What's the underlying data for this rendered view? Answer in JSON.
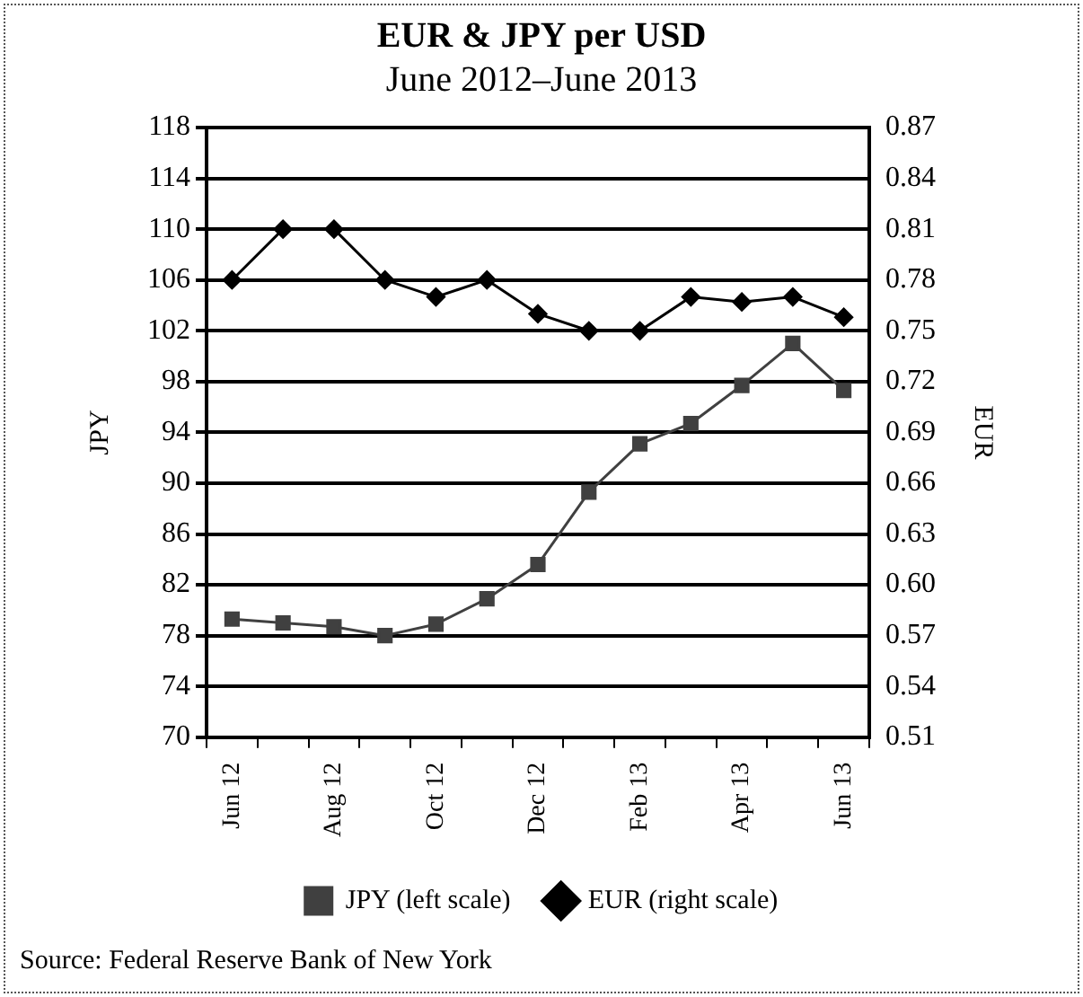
{
  "chart_data": {
    "type": "line",
    "title": "EUR & JPY per USD",
    "subtitle": "June 2012–June 2013",
    "ylabel": "JPY",
    "y2label": "EUR",
    "categories": [
      "Jun 12",
      null,
      "Aug 12",
      null,
      "Oct 12",
      null,
      "Dec 12",
      null,
      "Feb 13",
      null,
      "Apr 13",
      null,
      "Jun 13"
    ],
    "series": [
      {
        "name": "JPY (left scale)",
        "color": "#404040",
        "marker": "square",
        "values": [
          79.3,
          79.0,
          78.7,
          78.0,
          78.9,
          80.9,
          83.6,
          89.3,
          93.1,
          94.7,
          97.7,
          101.0,
          97.3
        ]
      },
      {
        "name": "EUR (right scale)",
        "color": "#000000",
        "marker": "diamond",
        "axis": "y2",
        "values": [
          0.78,
          0.81,
          0.81,
          0.78,
          0.77,
          0.78,
          0.76,
          0.75,
          0.75,
          0.77,
          0.767,
          0.77,
          0.758
        ]
      }
    ],
    "ylim": [
      70,
      118
    ],
    "yticks": [
      70,
      74,
      78,
      82,
      86,
      90,
      94,
      98,
      102,
      106,
      110,
      114,
      118
    ],
    "y2lim": [
      0.51,
      0.87
    ],
    "y2ticks": [
      0.51,
      0.54,
      0.57,
      {
        "value": 0.6,
        "label": "0.60"
      },
      0.63,
      0.66,
      0.69,
      0.72,
      0.75,
      0.78,
      0.81,
      0.84,
      0.87
    ],
    "grid": "y",
    "legend": "bottom",
    "line_style": "solid",
    "annotations": [
      "Source: Federal Reserve Bank of New York"
    ]
  }
}
